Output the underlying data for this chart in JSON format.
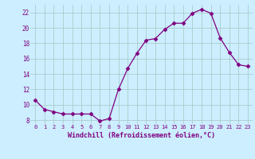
{
  "x": [
    0,
    1,
    2,
    3,
    4,
    5,
    6,
    7,
    8,
    9,
    10,
    11,
    12,
    13,
    14,
    15,
    16,
    17,
    18,
    19,
    20,
    21,
    22,
    23
  ],
  "y": [
    10.6,
    9.4,
    9.1,
    8.8,
    8.8,
    8.8,
    8.8,
    7.9,
    8.2,
    12.0,
    14.7,
    16.7,
    18.4,
    18.6,
    19.8,
    20.6,
    20.6,
    21.9,
    22.4,
    21.9,
    18.7,
    16.8,
    15.2,
    15.0
  ],
  "line_color": "#800080",
  "marker": "D",
  "marker_size": 2.5,
  "bg_color": "#cceeff",
  "grid_color": "#aacccc",
  "xlabel": "Windchill (Refroidissement éolien,°C)",
  "xlim": [
    -0.5,
    23.5
  ],
  "ylim": [
    7.5,
    23
  ],
  "yticks": [
    8,
    10,
    12,
    14,
    16,
    18,
    20,
    22
  ],
  "xticks": [
    0,
    1,
    2,
    3,
    4,
    5,
    6,
    7,
    8,
    9,
    10,
    11,
    12,
    13,
    14,
    15,
    16,
    17,
    18,
    19,
    20,
    21,
    22,
    23
  ],
  "label_color": "#800080",
  "tick_fontsize": 5.0,
  "xlabel_fontsize": 6.0
}
